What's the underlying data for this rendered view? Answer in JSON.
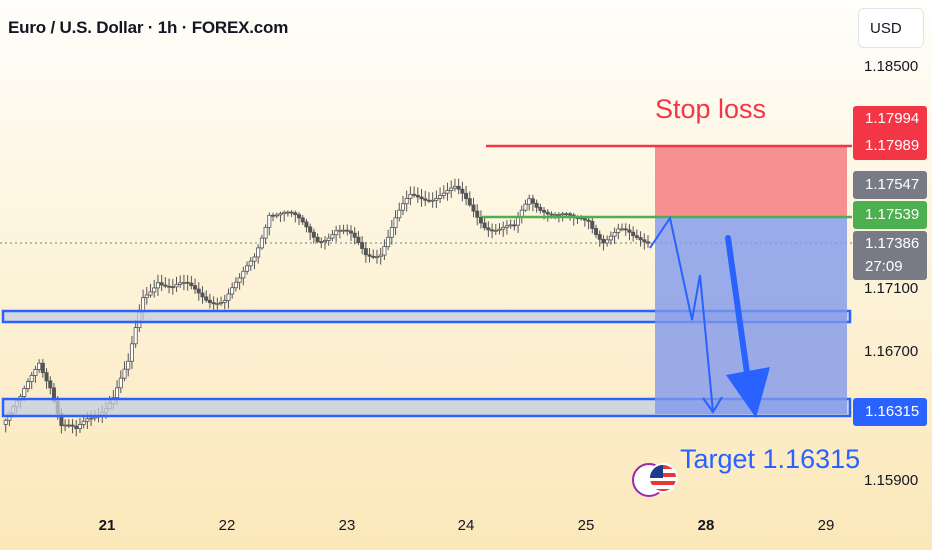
{
  "header": {
    "title": "Euro / U.S. Dollar · 1h · FOREX.com",
    "currency": "USD"
  },
  "price_axis": {
    "ticks": [
      "1.18500",
      "1.17100",
      "1.16700",
      "1.15900"
    ]
  },
  "time_axis": {
    "ticks": [
      {
        "label": "21",
        "bold": true
      },
      {
        "label": "22",
        "bold": false
      },
      {
        "label": "23",
        "bold": false
      },
      {
        "label": "24",
        "bold": false
      },
      {
        "label": "25",
        "bold": false
      },
      {
        "label": "28",
        "bold": true
      },
      {
        "label": "29",
        "bold": false
      }
    ]
  },
  "badges": {
    "stop_upper": "1.17994",
    "stop_lower": "1.17989",
    "high_marker": "1.17547",
    "entry": "1.17539",
    "last_price": "1.17386",
    "countdown": "27:09",
    "target": "1.16315"
  },
  "annotations": {
    "stop_loss": "Stop loss",
    "target": "Target 1.16315"
  },
  "colors": {
    "stop": "#f23645",
    "stop_zone": "#f78b8b",
    "entry": "#4caf50",
    "target_zone": "#8fa6f0",
    "zone_border": "#2962ff",
    "candle": "#555555",
    "grey_badge": "#787b86"
  },
  "chart_data": {
    "type": "candlestick",
    "symbol": "EUR/USD",
    "timeframe": "1h",
    "x_ticks": [
      "21",
      "22",
      "23",
      "24",
      "25",
      "28",
      "29"
    ],
    "y_ticks": [
      1.185,
      1.171,
      1.167,
      1.159
    ],
    "ylim": [
      1.1557,
      1.1897
    ],
    "stop_loss": 1.17989,
    "entry": 1.17539,
    "target": 1.16315,
    "last_price": 1.17386,
    "support_zones": [
      [
        1.1707,
        1.1714
      ],
      [
        1.1627,
        1.1638
      ]
    ],
    "path_points": [
      [
        0.0,
        1.1625
      ],
      [
        0.5,
        1.1638
      ],
      [
        1.0,
        1.1666
      ],
      [
        1.3,
        1.1652
      ],
      [
        1.6,
        1.1624
      ],
      [
        2.0,
        1.1618
      ],
      [
        2.3,
        1.1628
      ],
      [
        2.6,
        1.1635
      ],
      [
        3.0,
        1.1643
      ],
      [
        3.4,
        1.166
      ],
      [
        3.8,
        1.1704
      ],
      [
        4.2,
        1.1718
      ],
      [
        4.6,
        1.171
      ],
      [
        5.0,
        1.1709
      ],
      [
        5.5,
        1.1706
      ],
      [
        6.0,
        1.1703
      ],
      [
        6.4,
        1.1712
      ],
      [
        6.8,
        1.173
      ],
      [
        7.2,
        1.176
      ],
      [
        7.6,
        1.1756
      ],
      [
        8.0,
        1.175
      ],
      [
        8.5,
        1.1743
      ],
      [
        9.0,
        1.1746
      ],
      [
        9.4,
        1.174
      ],
      [
        9.8,
        1.1732
      ],
      [
        10.2,
        1.1735
      ],
      [
        10.6,
        1.1752
      ],
      [
        11.0,
        1.1765
      ],
      [
        11.4,
        1.1768
      ],
      [
        11.8,
        1.1771
      ],
      [
        12.2,
        1.177
      ],
      [
        12.6,
        1.176
      ],
      [
        13.0,
        1.1752
      ],
      [
        13.4,
        1.1748
      ],
      [
        13.8,
        1.1745
      ],
      [
        14.2,
        1.1766
      ],
      [
        14.6,
        1.1762
      ],
      [
        15.0,
        1.1755
      ],
      [
        15.4,
        1.175
      ],
      [
        15.8,
        1.1754
      ],
      [
        16.2,
        1.1742
      ],
      [
        16.6,
        1.1744
      ],
      [
        17.0,
        1.174
      ],
      [
        17.4,
        1.1742
      ]
    ]
  }
}
